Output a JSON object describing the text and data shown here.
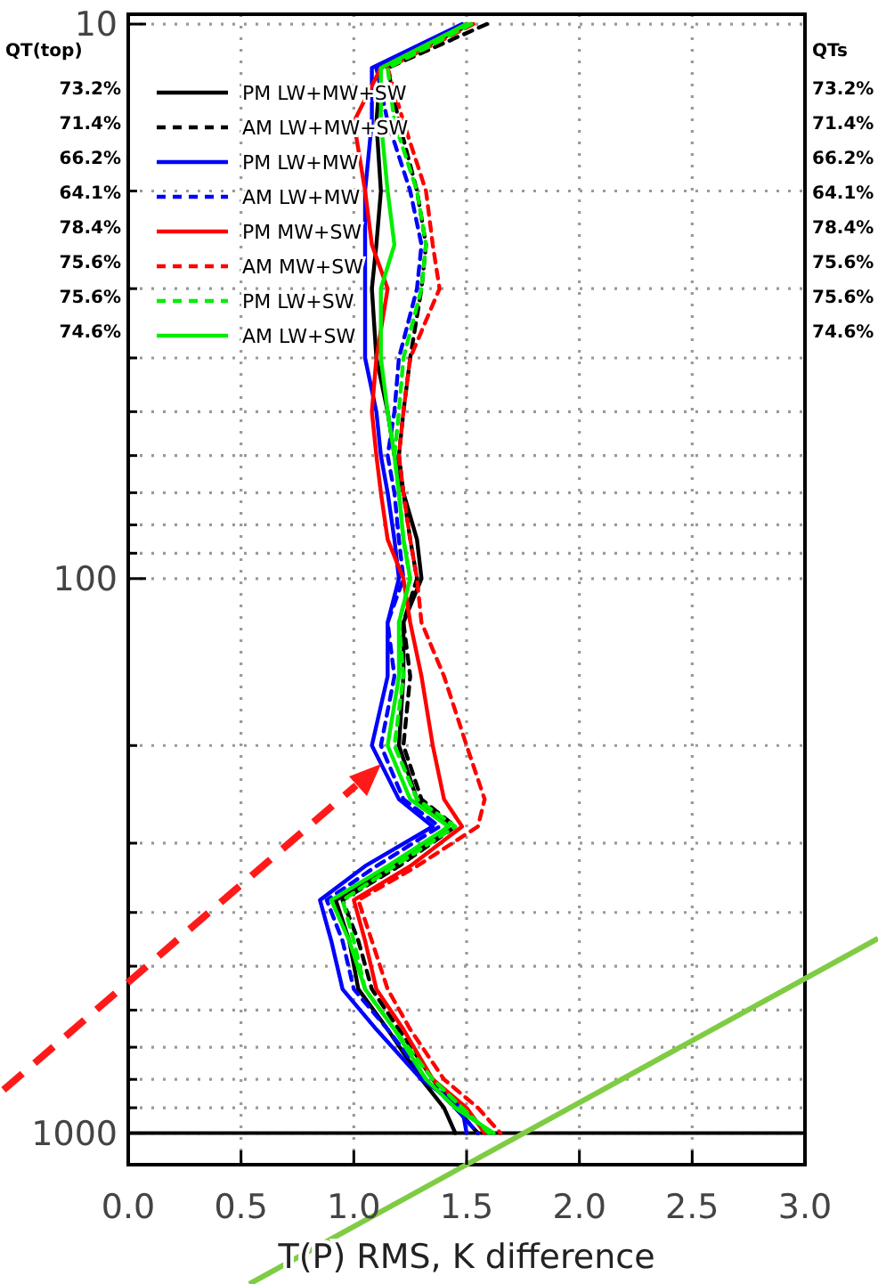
{
  "chart_data": {
    "type": "line",
    "xlabel": "T(P) RMS, K difference",
    "xlim": [
      0,
      3
    ],
    "xticks": [
      {
        "value": 0,
        "label": "0.0"
      },
      {
        "value": 0.5,
        "label": "0.5"
      },
      {
        "value": 1,
        "label": "1.0"
      },
      {
        "value": 1.5,
        "label": "1.5"
      },
      {
        "value": 2,
        "label": "2.0"
      },
      {
        "value": 2.5,
        "label": "2.5"
      },
      {
        "value": 3,
        "label": "3.0"
      }
    ],
    "ylim": [
      1140,
      9.6
    ],
    "log": "y",
    "yticks": [
      10,
      {
        "value": 20,
        "label": null
      },
      {
        "value": 30,
        "label": null
      },
      {
        "value": 40,
        "label": null
      },
      {
        "value": 50,
        "label": null
      },
      {
        "value": 60,
        "label": null
      },
      {
        "value": 70,
        "label": null
      },
      {
        "value": 80,
        "label": null
      },
      {
        "value": 90,
        "label": null
      },
      100,
      {
        "value": 200,
        "label": null
      },
      {
        "value": 300,
        "label": null
      },
      {
        "value": 400,
        "label": null
      },
      {
        "value": 500,
        "label": null
      },
      {
        "value": 600,
        "label": null
      },
      {
        "value": 700,
        "label": null
      },
      {
        "value": 800,
        "label": null
      },
      {
        "value": 900,
        "label": null
      },
      1000
    ],
    "grid": true,
    "legend": "top left",
    "ref_lines": [
      {
        "axis": "y",
        "value": 1000,
        "color": "#000000",
        "line_style": "solid"
      }
    ],
    "annotations": [
      "QT(top)",
      "73.2%",
      "71.4%",
      "66.2%",
      "64.1%",
      "78.4%",
      "75.6%",
      "75.6%",
      "74.6%",
      "QTs",
      "73.2%",
      "71.4%",
      "66.2%",
      "64.1%",
      "78.4%",
      "75.6%",
      "75.6%",
      "74.6%"
    ],
    "series": [
      {
        "name": "PM LW+MW+SW",
        "color": "#000000",
        "line_style": "solid",
        "values": [
          10,
          12,
          15,
          20,
          25,
          30,
          40,
          50,
          60,
          70,
          85,
          100,
          120,
          150,
          200,
          250,
          280,
          330,
          380,
          450,
          550,
          650,
          800,
          900,
          1000
        ],
        "x": [
          1.52,
          1.12,
          1.1,
          1.12,
          1.1,
          1.08,
          1.1,
          1.15,
          1.18,
          1.22,
          1.28,
          1.3,
          1.22,
          1.22,
          1.2,
          1.28,
          1.42,
          1.18,
          0.92,
          0.98,
          1.02,
          1.15,
          1.3,
          1.4,
          1.45
        ]
      },
      {
        "name": "AM LW+MW+SW",
        "color": "#000000",
        "line_style": "dashed",
        "values": [
          10,
          12,
          15,
          20,
          25,
          30,
          40,
          50,
          60,
          70,
          85,
          100,
          120,
          150,
          200,
          250,
          280,
          330,
          380,
          450,
          550,
          650,
          800,
          900,
          1000
        ],
        "x": [
          1.59,
          1.15,
          1.2,
          1.28,
          1.32,
          1.3,
          1.25,
          1.22,
          1.2,
          1.22,
          1.25,
          1.28,
          1.22,
          1.25,
          1.22,
          1.3,
          1.45,
          1.2,
          0.95,
          1.02,
          1.08,
          1.2,
          1.35,
          1.45,
          1.55
        ]
      },
      {
        "name": "PM LW+MW",
        "color": "#0000ff",
        "line_style": "solid",
        "values": [
          10,
          12,
          15,
          20,
          25,
          30,
          40,
          50,
          60,
          70,
          85,
          100,
          120,
          150,
          200,
          250,
          280,
          330,
          380,
          450,
          550,
          650,
          800,
          900,
          1000
        ],
        "x": [
          1.48,
          1.08,
          1.08,
          1.05,
          1.05,
          1.05,
          1.05,
          1.1,
          1.12,
          1.15,
          1.18,
          1.2,
          1.15,
          1.15,
          1.08,
          1.2,
          1.35,
          1.05,
          0.85,
          0.9,
          0.95,
          1.1,
          1.3,
          1.48,
          1.5
        ]
      },
      {
        "name": "AM LW+MW",
        "color": "#0000ff",
        "line_style": "dashed",
        "values": [
          10,
          12,
          15,
          20,
          25,
          30,
          40,
          50,
          60,
          70,
          85,
          100,
          120,
          150,
          200,
          250,
          280,
          330,
          380,
          450,
          550,
          650,
          800,
          900,
          1000
        ],
        "x": [
          1.5,
          1.1,
          1.15,
          1.25,
          1.3,
          1.28,
          1.2,
          1.18,
          1.15,
          1.18,
          1.2,
          1.22,
          1.15,
          1.18,
          1.12,
          1.22,
          1.38,
          1.1,
          0.88,
          0.95,
          1.0,
          1.15,
          1.32,
          1.45,
          1.55
        ]
      },
      {
        "name": "PM MW+SW",
        "color": "#ff0000",
        "line_style": "solid",
        "values": [
          10,
          12,
          15,
          20,
          25,
          30,
          40,
          50,
          60,
          70,
          85,
          100,
          120,
          150,
          200,
          250,
          280,
          330,
          380,
          450,
          550,
          650,
          800,
          900,
          1000
        ],
        "x": [
          1.5,
          1.12,
          1.0,
          1.05,
          1.08,
          1.15,
          1.1,
          1.08,
          1.1,
          1.12,
          1.15,
          1.22,
          1.25,
          1.3,
          1.35,
          1.4,
          1.48,
          1.25,
          1.0,
          1.05,
          1.1,
          1.22,
          1.35,
          1.5,
          1.58
        ]
      },
      {
        "name": "AM MW+SW",
        "color": "#ff0000",
        "line_style": "dashed",
        "values": [
          10,
          12,
          15,
          20,
          25,
          30,
          40,
          50,
          60,
          70,
          85,
          100,
          120,
          150,
          200,
          250,
          280,
          330,
          380,
          450,
          550,
          650,
          800,
          900,
          1000
        ],
        "x": [
          1.53,
          1.15,
          1.22,
          1.32,
          1.35,
          1.38,
          1.25,
          1.22,
          1.2,
          1.22,
          1.25,
          1.28,
          1.3,
          1.4,
          1.5,
          1.58,
          1.55,
          1.28,
          1.02,
          1.08,
          1.15,
          1.25,
          1.4,
          1.55,
          1.65
        ]
      },
      {
        "name": "PM LW+SW",
        "color": "#00ee00",
        "line_style": "dashed",
        "values": [
          10,
          12,
          15,
          20,
          25,
          30,
          40,
          50,
          60,
          70,
          85,
          100,
          120,
          150,
          200,
          250,
          280,
          330,
          380,
          450,
          550,
          650,
          800,
          900,
          1000
        ],
        "x": [
          1.52,
          1.15,
          1.18,
          1.28,
          1.32,
          1.3,
          1.22,
          1.2,
          1.18,
          1.2,
          1.22,
          1.25,
          1.2,
          1.22,
          1.18,
          1.28,
          1.45,
          1.18,
          0.95,
          1.0,
          1.05,
          1.18,
          1.35,
          1.48,
          1.6
        ]
      },
      {
        "name": "AM LW+SW",
        "color": "#00ee00",
        "line_style": "solid",
        "values": [
          10,
          12,
          15,
          20,
          25,
          30,
          40,
          50,
          60,
          70,
          85,
          100,
          120,
          150,
          200,
          250,
          280,
          330,
          380,
          450,
          550,
          650,
          800,
          900,
          1000
        ],
        "x": [
          1.5,
          1.12,
          1.12,
          1.15,
          1.18,
          1.12,
          1.12,
          1.15,
          1.18,
          1.2,
          1.22,
          1.25,
          1.2,
          1.2,
          1.15,
          1.25,
          1.42,
          1.15,
          0.9,
          0.98,
          1.05,
          1.18,
          1.32,
          1.45,
          1.62
        ]
      }
    ]
  }
}
